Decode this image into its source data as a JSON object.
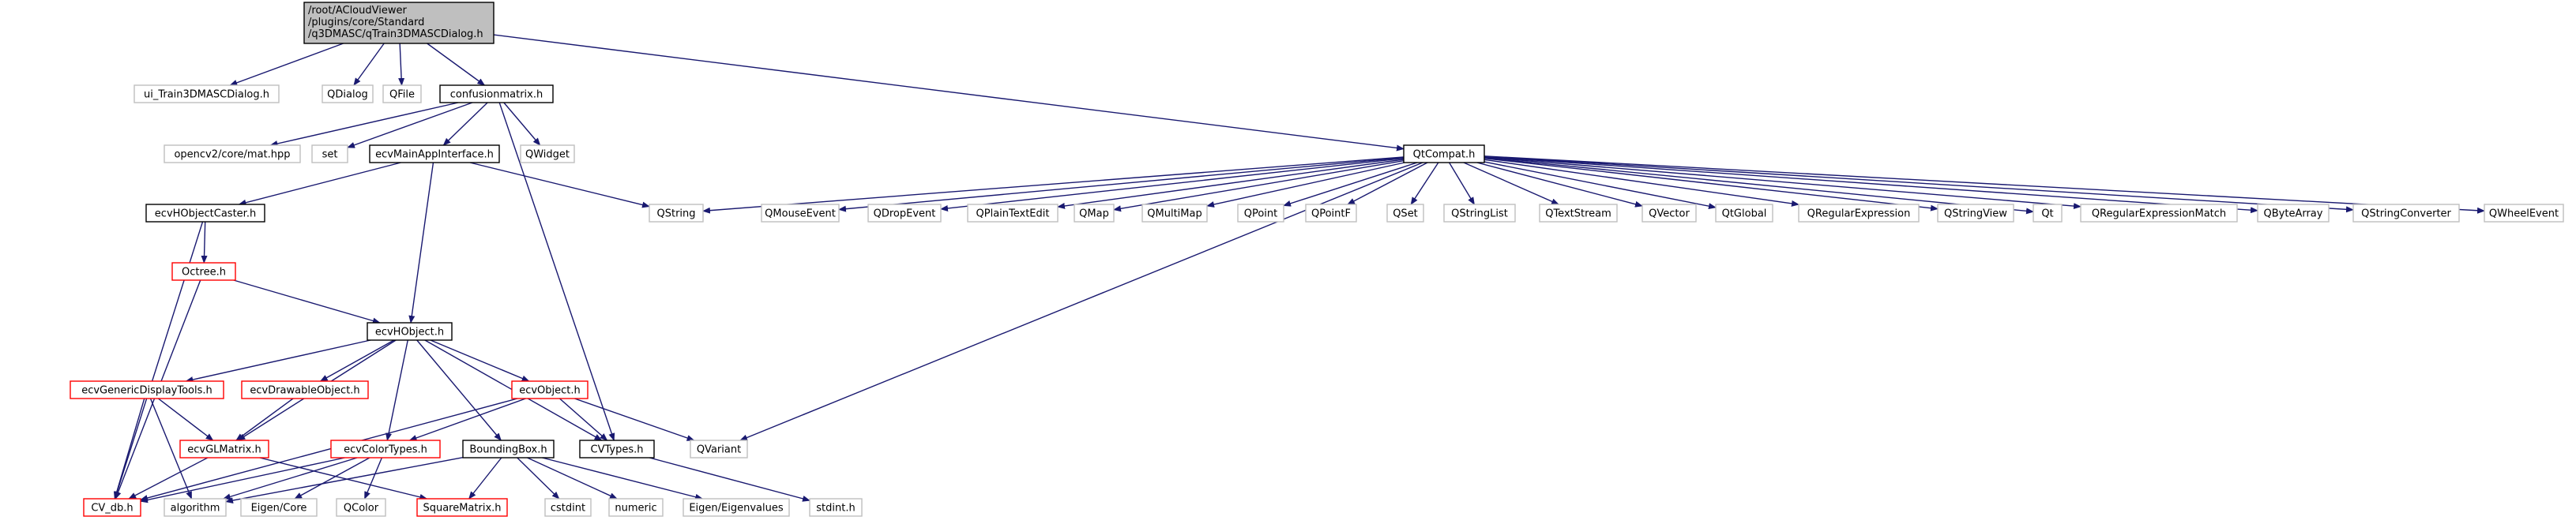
{
  "colors": {
    "edge": "#191970",
    "root_fill": "#bfbfbf",
    "root_border": "#000000",
    "file_border": "#000000",
    "file_fill": "#ffffff",
    "partial_border": "#ff0000",
    "external_border": "#bfbfbf",
    "label": "#000000"
  },
  "graph": {
    "nodes": [
      {
        "id": "root",
        "kind": "root",
        "lines": [
          "/root/ACloudViewer",
          "/plugins/core/Standard",
          "/q3DMASC/qTrain3DMASCDialog.h"
        ]
      },
      {
        "id": "ui_train",
        "kind": "external",
        "lines": [
          "ui_Train3DMASCDialog.h"
        ]
      },
      {
        "id": "qdialog",
        "kind": "external",
        "lines": [
          "QDialog"
        ]
      },
      {
        "id": "qfile",
        "kind": "external",
        "lines": [
          "QFile"
        ]
      },
      {
        "id": "confusion",
        "kind": "file",
        "lines": [
          "confusionmatrix.h"
        ]
      },
      {
        "id": "qtcompat",
        "kind": "file",
        "lines": [
          "QtCompat.h"
        ]
      },
      {
        "id": "opencv",
        "kind": "external",
        "lines": [
          "opencv2/core/mat.hpp"
        ]
      },
      {
        "id": "set",
        "kind": "external",
        "lines": [
          "set"
        ]
      },
      {
        "id": "mainapp",
        "kind": "file",
        "lines": [
          "ecvMainAppInterface.h"
        ]
      },
      {
        "id": "qwidget",
        "kind": "external",
        "lines": [
          "QWidget"
        ]
      },
      {
        "id": "caster",
        "kind": "file",
        "lines": [
          "ecvHObjectCaster.h"
        ]
      },
      {
        "id": "qstring",
        "kind": "external",
        "lines": [
          "QString"
        ]
      },
      {
        "id": "qmouseevent",
        "kind": "external",
        "lines": [
          "QMouseEvent"
        ]
      },
      {
        "id": "qdropevent",
        "kind": "external",
        "lines": [
          "QDropEvent"
        ]
      },
      {
        "id": "qplaintextedit",
        "kind": "external",
        "lines": [
          "QPlainTextEdit"
        ]
      },
      {
        "id": "qmap",
        "kind": "external",
        "lines": [
          "QMap"
        ]
      },
      {
        "id": "qmultimap",
        "kind": "external",
        "lines": [
          "QMultiMap"
        ]
      },
      {
        "id": "qpoint",
        "kind": "external",
        "lines": [
          "QPoint"
        ]
      },
      {
        "id": "qpointf",
        "kind": "external",
        "lines": [
          "QPointF"
        ]
      },
      {
        "id": "qset",
        "kind": "external",
        "lines": [
          "QSet"
        ]
      },
      {
        "id": "qstringlist",
        "kind": "external",
        "lines": [
          "QStringList"
        ]
      },
      {
        "id": "qtextstream",
        "kind": "external",
        "lines": [
          "QTextStream"
        ]
      },
      {
        "id": "qvector",
        "kind": "external",
        "lines": [
          "QVector"
        ]
      },
      {
        "id": "qtglobal",
        "kind": "external",
        "lines": [
          "QtGlobal"
        ]
      },
      {
        "id": "qregexp",
        "kind": "external",
        "lines": [
          "QRegularExpression"
        ]
      },
      {
        "id": "qstringview",
        "kind": "external",
        "lines": [
          "QStringView"
        ]
      },
      {
        "id": "qt",
        "kind": "external",
        "lines": [
          "Qt"
        ]
      },
      {
        "id": "qregexpmatch",
        "kind": "external",
        "lines": [
          "QRegularExpressionMatch"
        ]
      },
      {
        "id": "qbytearray",
        "kind": "external",
        "lines": [
          "QByteArray"
        ]
      },
      {
        "id": "qstringconv",
        "kind": "external",
        "lines": [
          "QStringConverter"
        ]
      },
      {
        "id": "qwheelevent",
        "kind": "external",
        "lines": [
          "QWheelEvent"
        ]
      },
      {
        "id": "octree",
        "kind": "partial",
        "lines": [
          "Octree.h"
        ]
      },
      {
        "id": "hobject",
        "kind": "file",
        "lines": [
          "ecvHObject.h"
        ]
      },
      {
        "id": "gendisp",
        "kind": "partial",
        "lines": [
          "ecvGenericDisplayTools.h"
        ]
      },
      {
        "id": "drawable",
        "kind": "partial",
        "lines": [
          "ecvDrawableObject.h"
        ]
      },
      {
        "id": "ecvobject",
        "kind": "partial",
        "lines": [
          "ecvObject.h"
        ]
      },
      {
        "id": "glmatrix",
        "kind": "partial",
        "lines": [
          "ecvGLMatrix.h"
        ]
      },
      {
        "id": "colortypes",
        "kind": "partial",
        "lines": [
          "ecvColorTypes.h"
        ]
      },
      {
        "id": "bbox",
        "kind": "file",
        "lines": [
          "BoundingBox.h"
        ]
      },
      {
        "id": "cvtypes",
        "kind": "file",
        "lines": [
          "CVTypes.h"
        ]
      },
      {
        "id": "qvariant",
        "kind": "external",
        "lines": [
          "QVariant"
        ]
      },
      {
        "id": "cvdb",
        "kind": "partial",
        "lines": [
          "CV_db.h"
        ]
      },
      {
        "id": "algorithm",
        "kind": "external",
        "lines": [
          "algorithm"
        ]
      },
      {
        "id": "eigencore",
        "kind": "external",
        "lines": [
          "Eigen/Core"
        ]
      },
      {
        "id": "qcolor",
        "kind": "external",
        "lines": [
          "QColor"
        ]
      },
      {
        "id": "squarematrix",
        "kind": "partial",
        "lines": [
          "SquareMatrix.h"
        ]
      },
      {
        "id": "cstdint",
        "kind": "external",
        "lines": [
          "cstdint"
        ]
      },
      {
        "id": "numeric",
        "kind": "external",
        "lines": [
          "numeric"
        ]
      },
      {
        "id": "eigenvalues",
        "kind": "external",
        "lines": [
          "Eigen/Eigenvalues"
        ]
      },
      {
        "id": "stdint",
        "kind": "external",
        "lines": [
          "stdint.h"
        ]
      }
    ],
    "edges": [
      [
        "root",
        "ui_train"
      ],
      [
        "root",
        "qdialog"
      ],
      [
        "root",
        "qfile"
      ],
      [
        "root",
        "confusion"
      ],
      [
        "root",
        "qtcompat"
      ],
      [
        "confusion",
        "opencv"
      ],
      [
        "confusion",
        "set"
      ],
      [
        "confusion",
        "mainapp"
      ],
      [
        "confusion",
        "qwidget"
      ],
      [
        "confusion",
        "cvtypes"
      ],
      [
        "mainapp",
        "caster"
      ],
      [
        "mainapp",
        "qstring"
      ],
      [
        "mainapp",
        "hobject"
      ],
      [
        "caster",
        "octree"
      ],
      [
        "caster",
        "cvdb"
      ],
      [
        "octree",
        "hobject"
      ],
      [
        "octree",
        "cvdb"
      ],
      [
        "hobject",
        "gendisp"
      ],
      [
        "hobject",
        "drawable"
      ],
      [
        "hobject",
        "ecvobject"
      ],
      [
        "hobject",
        "glmatrix"
      ],
      [
        "hobject",
        "colortypes"
      ],
      [
        "hobject",
        "bbox"
      ],
      [
        "hobject",
        "cvtypes"
      ],
      [
        "gendisp",
        "glmatrix"
      ],
      [
        "gendisp",
        "cvdb"
      ],
      [
        "gendisp",
        "algorithm"
      ],
      [
        "drawable",
        "glmatrix"
      ],
      [
        "ecvobject",
        "colortypes"
      ],
      [
        "ecvobject",
        "cvtypes"
      ],
      [
        "ecvobject",
        "qvariant"
      ],
      [
        "ecvobject",
        "cvdb"
      ],
      [
        "glmatrix",
        "cvdb"
      ],
      [
        "glmatrix",
        "squarematrix"
      ],
      [
        "colortypes",
        "cvdb"
      ],
      [
        "colortypes",
        "algorithm"
      ],
      [
        "colortypes",
        "eigencore"
      ],
      [
        "colortypes",
        "qcolor"
      ],
      [
        "bbox",
        "algorithm"
      ],
      [
        "bbox",
        "squarematrix"
      ],
      [
        "bbox",
        "cstdint"
      ],
      [
        "bbox",
        "numeric"
      ],
      [
        "bbox",
        "eigenvalues"
      ],
      [
        "cvtypes",
        "stdint"
      ],
      [
        "qtcompat",
        "qstring"
      ],
      [
        "qtcompat",
        "qmouseevent"
      ],
      [
        "qtcompat",
        "qdropevent"
      ],
      [
        "qtcompat",
        "qplaintextedit"
      ],
      [
        "qtcompat",
        "qmap"
      ],
      [
        "qtcompat",
        "qmultimap"
      ],
      [
        "qtcompat",
        "qpoint"
      ],
      [
        "qtcompat",
        "qpointf"
      ],
      [
        "qtcompat",
        "qset"
      ],
      [
        "qtcompat",
        "qstringlist"
      ],
      [
        "qtcompat",
        "qtextstream"
      ],
      [
        "qtcompat",
        "qvector"
      ],
      [
        "qtcompat",
        "qtglobal"
      ],
      [
        "qtcompat",
        "qregexp"
      ],
      [
        "qtcompat",
        "qstringview"
      ],
      [
        "qtcompat",
        "qt"
      ],
      [
        "qtcompat",
        "qregexpmatch"
      ],
      [
        "qtcompat",
        "qbytearray"
      ],
      [
        "qtcompat",
        "qstringconv"
      ],
      [
        "qtcompat",
        "qwheelevent"
      ],
      [
        "qtcompat",
        "qvariant"
      ]
    ]
  }
}
